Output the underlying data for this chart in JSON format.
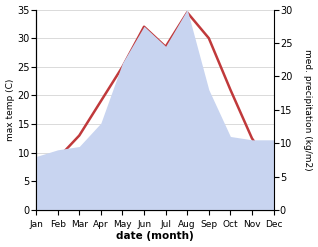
{
  "months": [
    "Jan",
    "Feb",
    "Mar",
    "Apr",
    "May",
    "Jun",
    "Jul",
    "Aug",
    "Sep",
    "Oct",
    "Nov",
    "Dec"
  ],
  "temperature": [
    4.5,
    9.0,
    13.0,
    19.0,
    25.0,
    32.0,
    28.5,
    34.5,
    30.0,
    21.0,
    12.5,
    7.0
  ],
  "precipitation": [
    8.0,
    9.0,
    9.5,
    13.0,
    22.0,
    27.5,
    24.5,
    30.0,
    18.0,
    11.0,
    10.5,
    10.5
  ],
  "temp_color": "#c0393b",
  "precip_color": "#c8d4f0",
  "temp_ylim": [
    0,
    35
  ],
  "precip_ylim": [
    0,
    30
  ],
  "temp_yticks": [
    0,
    5,
    10,
    15,
    20,
    25,
    30,
    35
  ],
  "precip_yticks": [
    0,
    5,
    10,
    15,
    20,
    25,
    30
  ],
  "xlabel": "date (month)",
  "ylabel_left": "max temp (C)",
  "ylabel_right": "med. precipitation (kg/m2)",
  "grid_color": "#cccccc"
}
